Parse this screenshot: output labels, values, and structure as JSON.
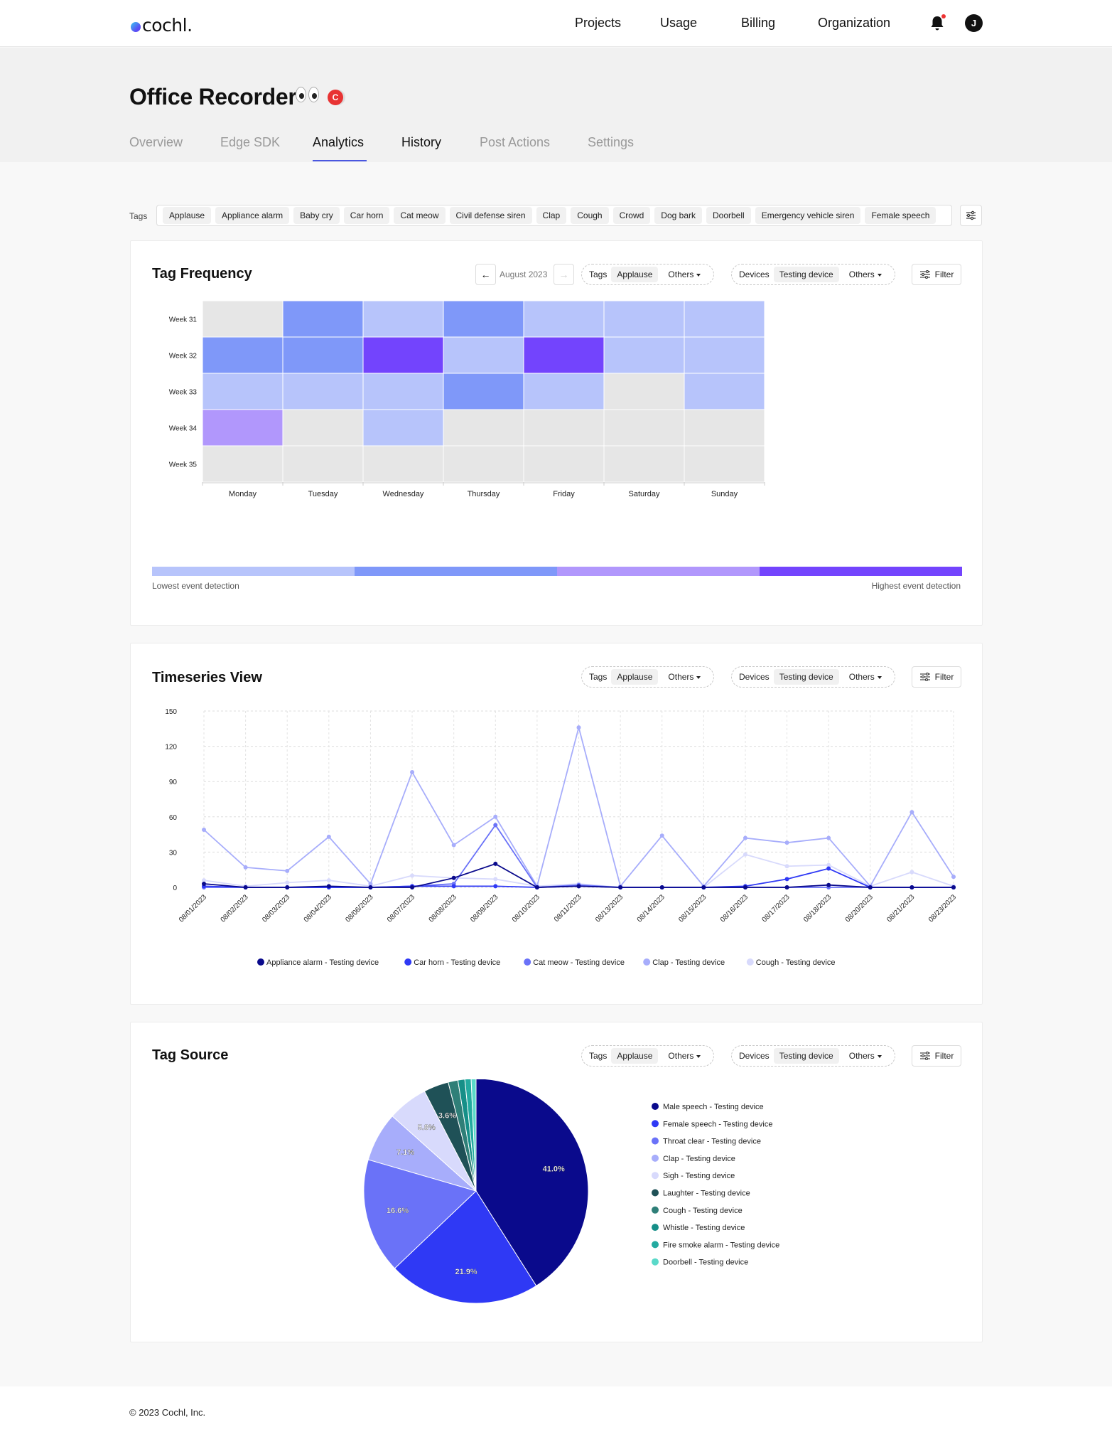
{
  "header": {
    "logo_text": "cochl.",
    "nav": [
      "Projects",
      "Usage",
      "Billing",
      "Organization"
    ],
    "avatar_initial": "J"
  },
  "project": {
    "title": "Office Recorder",
    "badge": "C",
    "tabs": [
      "Overview",
      "Edge SDK",
      "Analytics",
      "History",
      "Post Actions",
      "Settings"
    ],
    "active_tab": "Analytics"
  },
  "tags_filter": {
    "label": "Tags",
    "chips": [
      "Applause",
      "Appliance alarm",
      "Baby cry",
      "Car horn",
      "Cat meow",
      "Civil defense siren",
      "Clap",
      "Cough",
      "Crowd",
      "Dog bark",
      "Doorbell",
      "Emergency vehicle siren",
      "Female speech"
    ]
  },
  "controls": {
    "tags_label": "Tags",
    "tags_value": "Applause",
    "tags_others": "Others",
    "devices_label": "Devices",
    "devices_value": "Testing device",
    "devices_others": "Others",
    "filter_label": "Filter",
    "month": "August 2023"
  },
  "tag_frequency": {
    "title": "Tag Frequency",
    "legend_low": "Lowest event detection",
    "legend_high": "Highest event detection",
    "legend_colors": [
      "#b7c4fb",
      "#7f98f9",
      "#b197fc",
      "#7344fd"
    ]
  },
  "timeseries": {
    "title": "Timeseries View"
  },
  "tag_source": {
    "title": "Tag Source"
  },
  "footer": {
    "copyright": "© 2023 Cochl, Inc."
  },
  "chart_data": [
    {
      "type": "heatmap",
      "title": "Tag Frequency",
      "x": [
        "Monday",
        "Tuesday",
        "Wednesday",
        "Thursday",
        "Friday",
        "Saturday",
        "Sunday"
      ],
      "y": [
        "Week 31",
        "Week 32",
        "Week 33",
        "Week 34",
        "Week 35"
      ],
      "levels": [
        [
          0,
          2,
          1,
          2,
          1,
          1,
          1
        ],
        [
          2,
          2,
          4,
          1,
          4,
          1,
          1
        ],
        [
          1,
          1,
          1,
          2,
          1,
          0,
          1
        ],
        [
          3,
          0,
          1,
          0,
          0,
          0,
          0
        ],
        [
          0,
          0,
          0,
          0,
          0,
          0,
          0
        ]
      ],
      "level_colors": [
        "#e6e6e6",
        "#b7c4fb",
        "#7f98f9",
        "#b197fc",
        "#7344fd"
      ]
    },
    {
      "type": "line",
      "title": "Timeseries View",
      "x": [
        "08/01/2023",
        "08/02/2023",
        "08/03/2023",
        "08/04/2023",
        "08/06/2023",
        "08/07/2023",
        "08/08/2023",
        "08/09/2023",
        "08/10/2023",
        "08/11/2023",
        "08/13/2023",
        "08/14/2023",
        "08/15/2023",
        "08/16/2023",
        "08/17/2023",
        "08/18/2023",
        "08/20/2023",
        "08/21/2023",
        "08/23/2023"
      ],
      "ylim": [
        0,
        150
      ],
      "yticks": [
        0,
        30,
        60,
        90,
        120,
        150
      ],
      "series": [
        {
          "name": "Appliance alarm - Testing device",
          "color": "#0a0a8c",
          "values": [
            3,
            0,
            0,
            1,
            0,
            0,
            8,
            20,
            0,
            1,
            0,
            0,
            0,
            0,
            0,
            2,
            0,
            0,
            0
          ]
        },
        {
          "name": "Car horn - Testing device",
          "color": "#2f39f5",
          "values": [
            1,
            0,
            0,
            0,
            0,
            1,
            1,
            1,
            0,
            1,
            0,
            0,
            0,
            1,
            7,
            16,
            0,
            0,
            0
          ]
        },
        {
          "name": "Cat meow - Testing device",
          "color": "#6a72f8",
          "values": [
            0,
            0,
            0,
            0,
            0,
            1,
            3,
            53,
            0,
            2,
            0,
            0,
            0,
            0,
            0,
            0,
            0,
            0,
            0
          ]
        },
        {
          "name": "Clap - Testing device",
          "color": "#a7adfb",
          "values": [
            49,
            17,
            14,
            43,
            3,
            98,
            36,
            60,
            1,
            136,
            1,
            44,
            1,
            42,
            38,
            42,
            1,
            64,
            9
          ]
        },
        {
          "name": "Cough - Testing device",
          "color": "#d8dafc",
          "values": [
            6,
            1,
            4,
            6,
            1,
            10,
            8,
            7,
            1,
            3,
            0,
            0,
            0,
            28,
            18,
            19,
            1,
            13,
            1
          ]
        }
      ]
    },
    {
      "type": "pie",
      "title": "Tag Source",
      "labels": [
        "Male speech - Testing device",
        "Female speech - Testing device",
        "Throat clear - Testing device",
        "Clap - Testing device",
        "Sigh - Testing device",
        "Laughter - Testing device",
        "Cough - Testing device",
        "Whistle - Testing device",
        "Fire smoke alarm - Testing device",
        "Doorbell - Testing device"
      ],
      "values": [
        41.0,
        21.9,
        16.6,
        7.1,
        5.8,
        3.6,
        1.4,
        1.0,
        0.9,
        0.7
      ],
      "shown_labels": [
        "41.0%",
        "21.9%",
        "16.6%",
        "7.1%",
        "5.8%",
        "3.6%",
        "",
        "",
        "",
        ""
      ],
      "colors": [
        "#0a0a8c",
        "#2f39f5",
        "#6a72f8",
        "#a7adfb",
        "#d8dafc",
        "#1f5157",
        "#2f7f78",
        "#168f88",
        "#23aaa0",
        "#5ad9c9"
      ]
    }
  ]
}
